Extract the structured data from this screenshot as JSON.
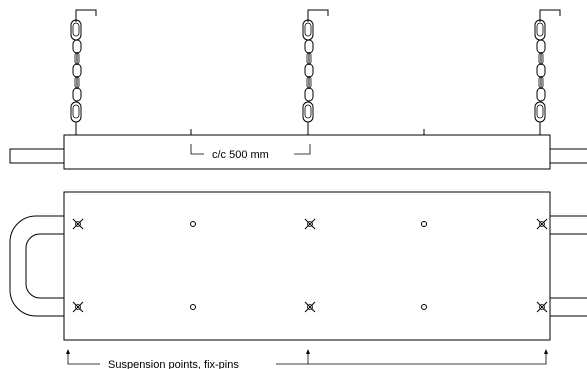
{
  "annotations": {
    "spacing": "c/c 500 mm",
    "suspension": "Suspension points, fix-pins"
  },
  "colors": {
    "line": "#000000",
    "background": "#ffffff"
  }
}
